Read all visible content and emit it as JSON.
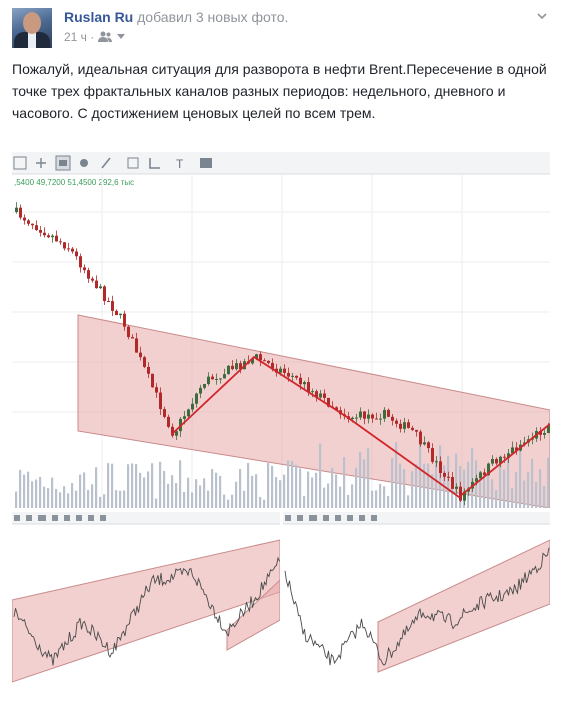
{
  "post": {
    "author": "Ruslan Ru",
    "action": "добавил 3 новых фото.",
    "time": "21 ч",
    "text": "Пожалуй, идеальная ситуация для разворота в нефти Brent.Пересечение в одной точке трех фрактальных каналов разных периодов: недельного, дневного и часового. С достижением ценовых целей по всем трем."
  },
  "icons": {
    "audience": "friends-icon",
    "menu": "chevron-down-icon"
  },
  "chart": {
    "ohlc_readout": ",5400  49,7200  51,4500  292,6 тыс",
    "channel_color": "#e9a9a9",
    "channel_line": "#c98a8a",
    "trend_line": "#d0262b",
    "up_color": "#3d6b3d",
    "down_color": "#b02a2a",
    "volume_color": "#b9c2cc"
  }
}
